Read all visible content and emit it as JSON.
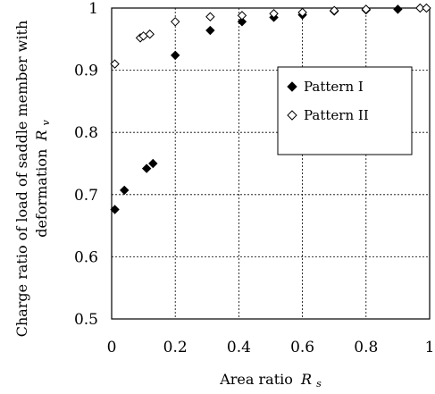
{
  "chart_data": {
    "type": "scatter",
    "xlabel": "Area ratio",
    "xlabel_symbol": "R",
    "xlabel_subscript": "s",
    "ylabel_line1": "Charge ratio of load of saddle member with",
    "ylabel_line2": "deformation",
    "ylabel_symbol": "R",
    "ylabel_subscript": "v",
    "xlim": [
      0,
      1
    ],
    "ylim": [
      0.5,
      1
    ],
    "xticks": [
      0,
      0.2,
      0.4,
      0.6,
      0.8,
      1
    ],
    "xtick_labels": [
      "0",
      "0.2",
      "0.4",
      "0.6",
      "0.8",
      "1"
    ],
    "yticks": [
      0.5,
      0.6,
      0.7,
      0.8,
      0.9,
      1
    ],
    "ytick_labels": [
      "0.5",
      "0.6",
      "0.7",
      "0.8",
      "0.9",
      "1"
    ],
    "grid": true,
    "legend_position": "right, upper-middle",
    "series": [
      {
        "name": "Pattern I",
        "marker": "filled-diamond",
        "color": "#000000",
        "x": [
          0.01,
          0.04,
          0.11,
          0.13,
          0.2,
          0.31,
          0.41,
          0.51,
          0.6,
          0.7,
          0.8,
          0.9
        ],
        "y": [
          0.676,
          0.707,
          0.742,
          0.75,
          0.924,
          0.964,
          0.978,
          0.985,
          0.989,
          0.995,
          0.997,
          0.998
        ]
      },
      {
        "name": "Pattern II",
        "marker": "open-diamond",
        "color": "#000000",
        "x": [
          0.01,
          0.09,
          0.1,
          0.12,
          0.2,
          0.31,
          0.41,
          0.51,
          0.6,
          0.7,
          0.8,
          0.97,
          0.99
        ],
        "y": [
          0.91,
          0.952,
          0.955,
          0.958,
          0.978,
          0.986,
          0.988,
          0.991,
          0.993,
          0.996,
          0.998,
          1.0,
          1.0
        ]
      }
    ]
  }
}
